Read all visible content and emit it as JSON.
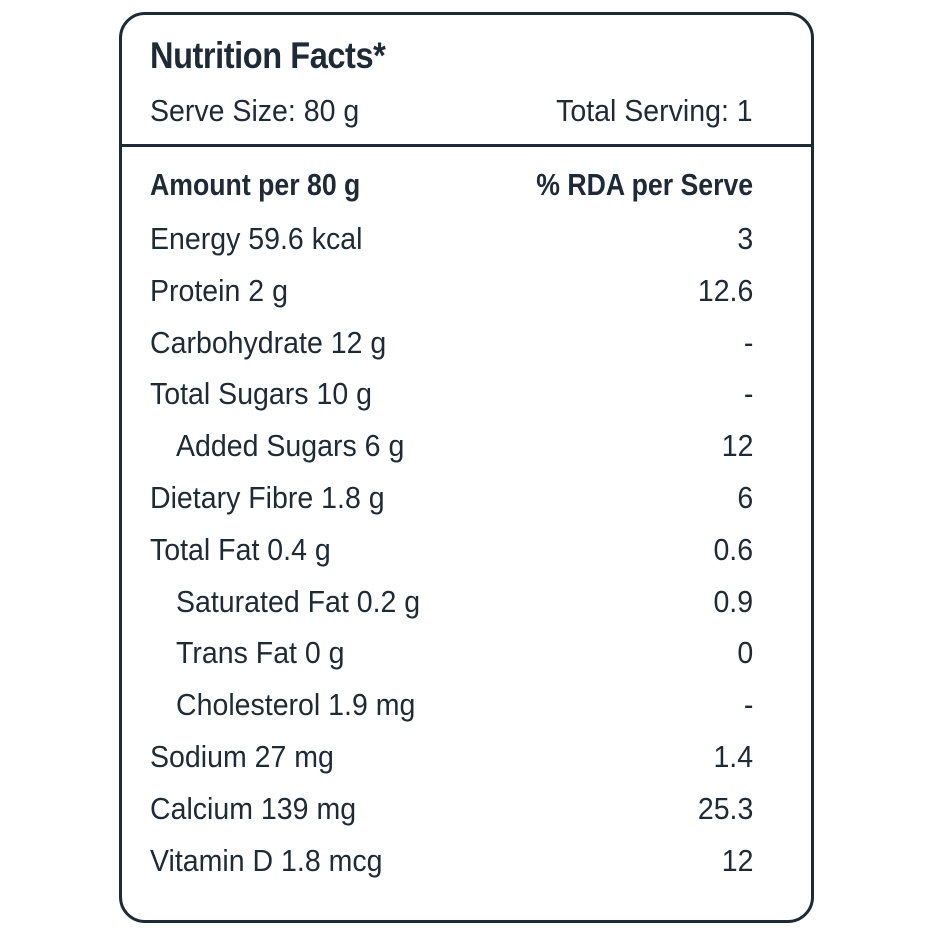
{
  "label": {
    "title": "Nutrition Facts*",
    "serve_size": "Serve Size: 80 g",
    "total_serving": "Total Serving: 1"
  },
  "table": {
    "header": {
      "name": "Amount per 80 g",
      "value": "% RDA per Serve"
    },
    "rows": [
      {
        "name": "Energy 59.6 kcal",
        "value": "3",
        "indent": false
      },
      {
        "name": "Protein 2 g",
        "value": "12.6",
        "indent": false
      },
      {
        "name": "Carbohydrate 12 g",
        "value": "-",
        "indent": false
      },
      {
        "name": "Total Sugars 10 g",
        "value": "-",
        "indent": false
      },
      {
        "name": "Added Sugars 6 g",
        "value": "12",
        "indent": true
      },
      {
        "name": "Dietary Fibre 1.8 g",
        "value": "6",
        "indent": false
      },
      {
        "name": "Total Fat 0.4 g",
        "value": "0.6",
        "indent": false
      },
      {
        "name": "Saturated Fat 0.2 g",
        "value": "0.9",
        "indent": true
      },
      {
        "name": "Trans Fat 0 g",
        "value": "0",
        "indent": true
      },
      {
        "name": "Cholesterol 1.9 mg",
        "value": "-",
        "indent": true
      },
      {
        "name": "Sodium 27 mg",
        "value": "1.4",
        "indent": false
      },
      {
        "name": "Calcium 139 mg",
        "value": "25.3",
        "indent": false
      },
      {
        "name": "Vitamin D 1.8 mcg",
        "value": "12",
        "indent": false
      }
    ]
  },
  "colors": {
    "text": "#1e2a36",
    "border": "#1e2a36",
    "background": "#ffffff"
  }
}
